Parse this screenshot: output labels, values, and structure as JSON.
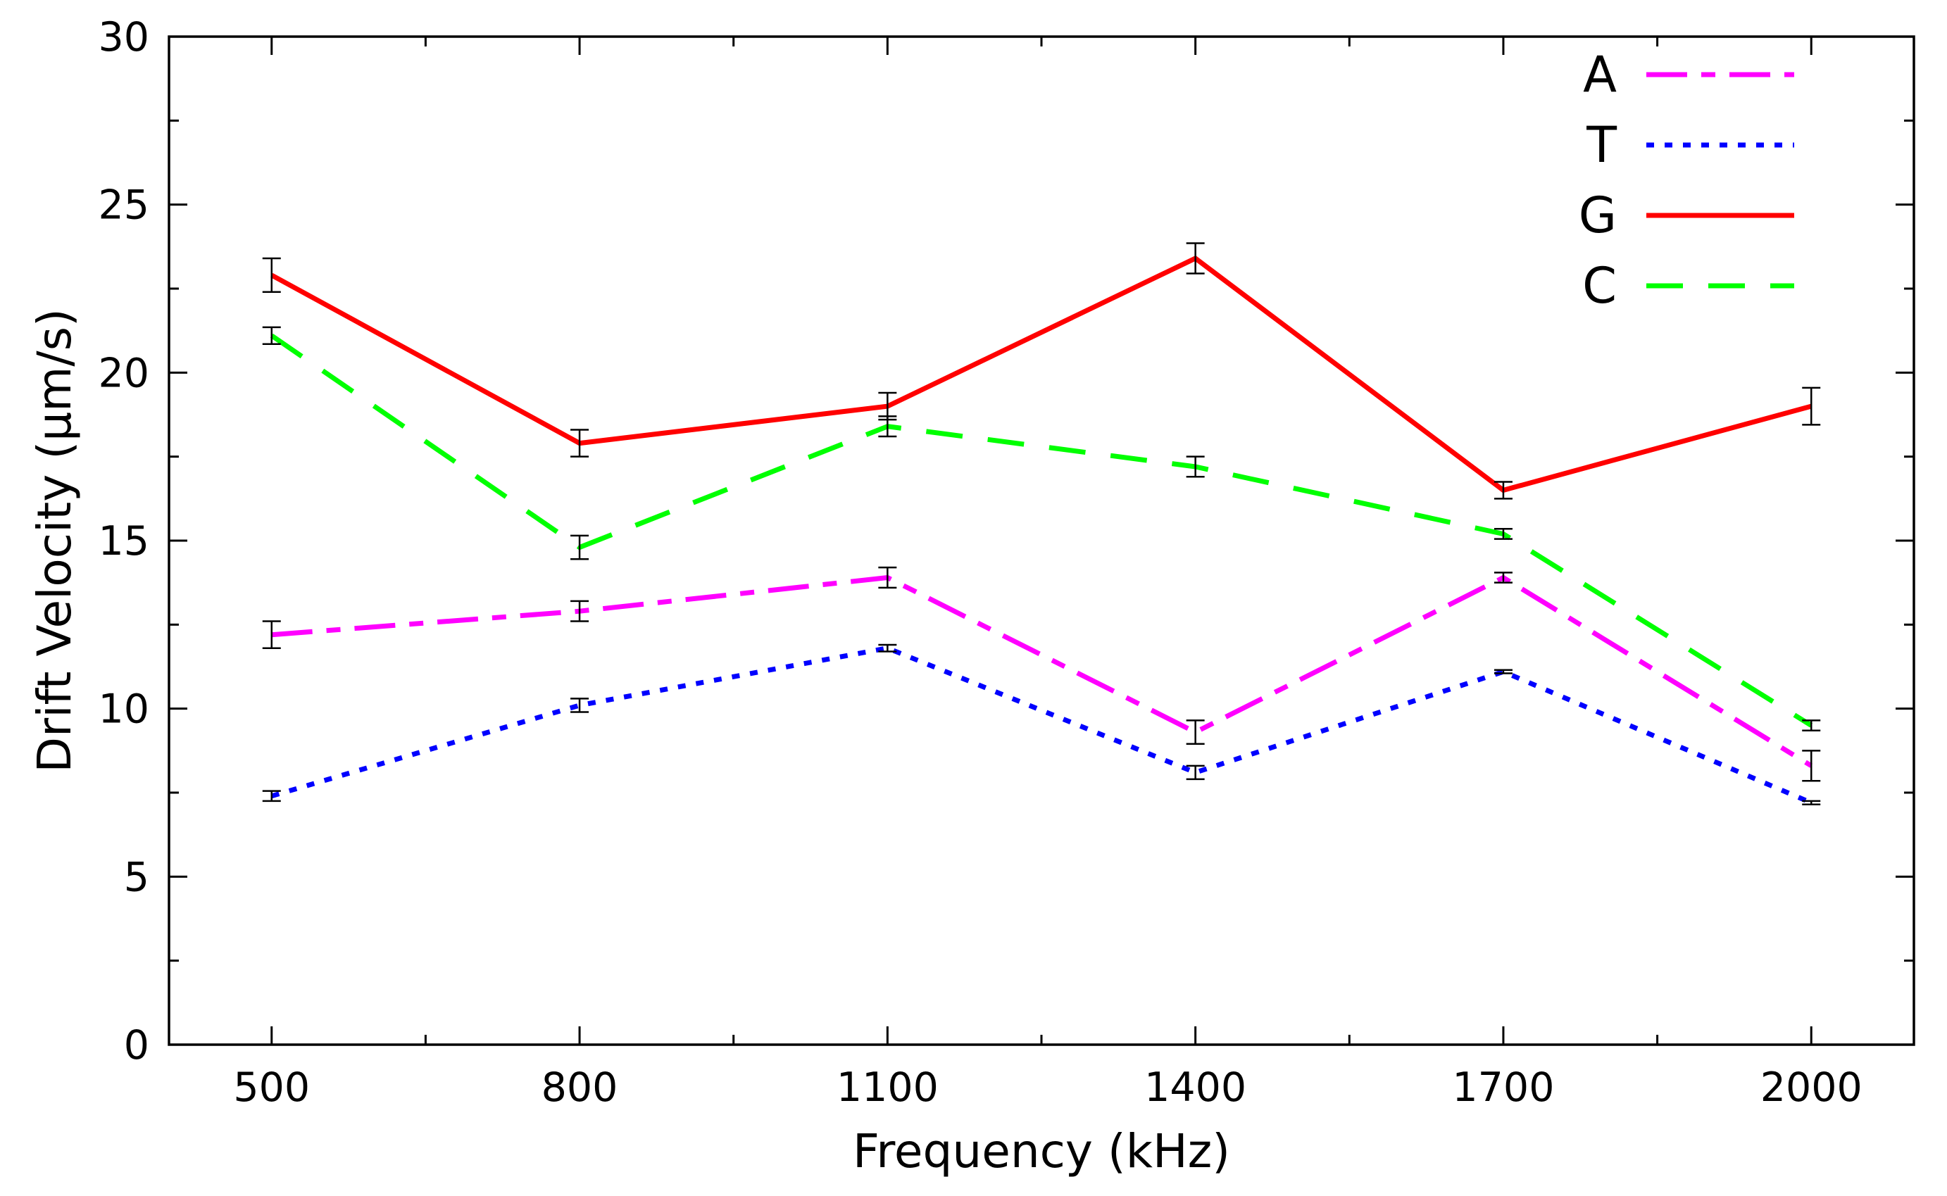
{
  "chart_data": {
    "type": "line",
    "title": "",
    "xlabel": "Frequency (kHz)",
    "ylabel": "Drift Velocity (μm/s)",
    "x": [
      500,
      800,
      1100,
      1400,
      1700,
      2000
    ],
    "xlim": [
      400,
      2100
    ],
    "ylim": [
      0,
      30
    ],
    "yticks": [
      0,
      5,
      10,
      15,
      20,
      25,
      30
    ],
    "grid": false,
    "legend_position": "top-right",
    "series": [
      {
        "name": "A",
        "color": "#ff00ff",
        "dash": "dash-dot",
        "values": [
          12.2,
          12.9,
          13.9,
          9.3,
          13.9,
          8.3
        ],
        "errors": [
          0.4,
          0.3,
          0.3,
          0.35,
          0.15,
          0.45
        ]
      },
      {
        "name": "T",
        "color": "#0000ff",
        "dash": "dotted",
        "values": [
          7.4,
          10.1,
          11.8,
          8.1,
          11.1,
          7.2
        ],
        "errors": [
          0.15,
          0.2,
          0.1,
          0.2,
          0.05,
          0.05
        ]
      },
      {
        "name": "G",
        "color": "#ff0000",
        "dash": "solid",
        "values": [
          22.9,
          17.9,
          19.0,
          23.4,
          16.5,
          19.0
        ],
        "errors": [
          0.5,
          0.4,
          0.4,
          0.45,
          0.25,
          0.55
        ]
      },
      {
        "name": "C",
        "color": "#00ff00",
        "dash": "dashed",
        "values": [
          21.1,
          14.8,
          18.4,
          17.2,
          15.2,
          9.5
        ],
        "errors": [
          0.25,
          0.35,
          0.3,
          0.3,
          0.15,
          0.15
        ]
      }
    ]
  }
}
